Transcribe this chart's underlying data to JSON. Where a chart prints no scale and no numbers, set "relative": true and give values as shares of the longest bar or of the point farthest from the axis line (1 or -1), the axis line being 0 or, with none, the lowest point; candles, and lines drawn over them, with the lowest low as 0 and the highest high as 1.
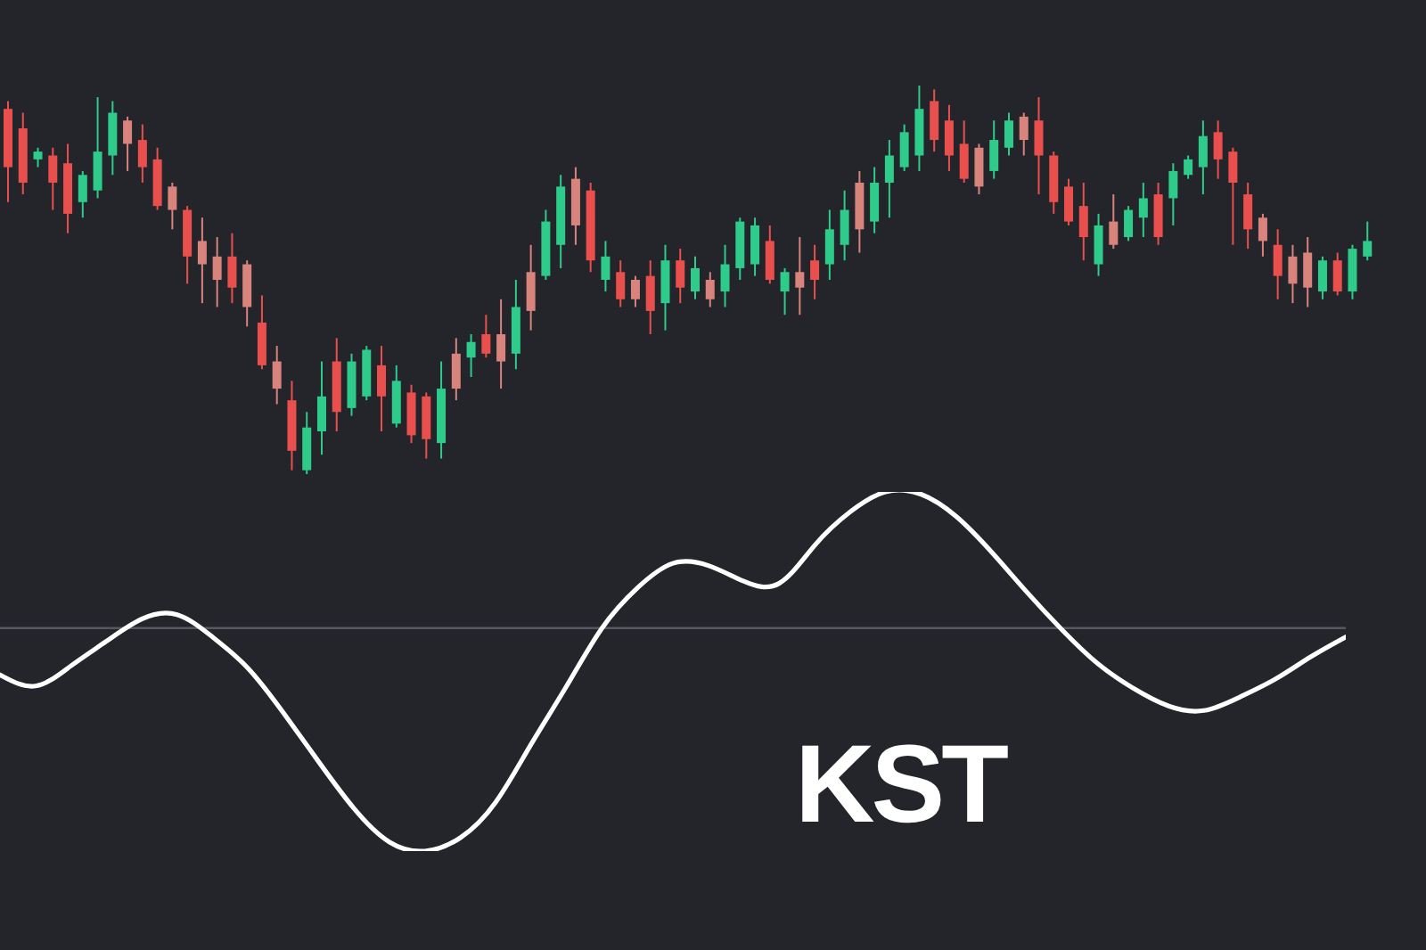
{
  "chart_data": [
    {
      "type": "candlestick",
      "relative": true,
      "categories": [
        null,
        null,
        null,
        null,
        null,
        null,
        null,
        null,
        null,
        null,
        null,
        null,
        null,
        null,
        null,
        null,
        null,
        null,
        null,
        null,
        null,
        null,
        null,
        null,
        null,
        null,
        null,
        null,
        null,
        null,
        null,
        null,
        null,
        null,
        null,
        null,
        null,
        null,
        null,
        null,
        null,
        null,
        null,
        null,
        null,
        null,
        null,
        null,
        null,
        null,
        null,
        null,
        null,
        null,
        null,
        null,
        null,
        null,
        null,
        null,
        null,
        null,
        null,
        null,
        null,
        null,
        null,
        null,
        null,
        null,
        null,
        null,
        null,
        null,
        null,
        null,
        null,
        null,
        null,
        null,
        null,
        null,
        null,
        null,
        null,
        null,
        null,
        null,
        null,
        null,
        null,
        null
      ],
      "ohlc": [
        [
          0.94,
          0.96,
          0.7,
          0.79
        ],
        [
          0.89,
          0.93,
          0.72,
          0.75
        ],
        [
          0.81,
          0.84,
          0.79,
          0.83
        ],
        [
          0.82,
          0.84,
          0.68,
          0.75
        ],
        [
          0.8,
          0.85,
          0.62,
          0.67
        ],
        [
          0.7,
          0.78,
          0.66,
          0.77
        ],
        [
          0.73,
          0.97,
          0.71,
          0.83
        ],
        [
          0.82,
          0.96,
          0.77,
          0.93
        ],
        [
          0.91,
          0.92,
          0.78,
          0.85
        ],
        [
          0.86,
          0.9,
          0.75,
          0.79
        ],
        [
          0.81,
          0.84,
          0.68,
          0.69
        ],
        [
          0.74,
          0.75,
          0.63,
          0.68
        ],
        [
          0.68,
          0.69,
          0.49,
          0.56
        ],
        [
          0.6,
          0.66,
          0.44,
          0.54
        ],
        [
          0.56,
          0.61,
          0.43,
          0.5
        ],
        [
          0.56,
          0.62,
          0.44,
          0.48
        ],
        [
          0.54,
          0.55,
          0.38,
          0.43
        ],
        [
          0.39,
          0.46,
          0.27,
          0.28
        ],
        [
          0.29,
          0.33,
          0.18,
          0.22
        ],
        [
          0.19,
          0.24,
          0.01,
          0.06
        ],
        [
          0.01,
          0.16,
          0,
          0.12
        ],
        [
          0.11,
          0.29,
          0.05,
          0.2
        ],
        [
          0.29,
          0.35,
          0.11,
          0.16
        ],
        [
          0.17,
          0.31,
          0.15,
          0.29
        ],
        [
          0.2,
          0.33,
          0.19,
          0.32
        ],
        [
          0.28,
          0.33,
          0.11,
          0.2
        ],
        [
          0.13,
          0.28,
          0.12,
          0.24
        ],
        [
          0.21,
          0.23,
          0.08,
          0.1
        ],
        [
          0.2,
          0.21,
          0.04,
          0.09
        ],
        [
          0.08,
          0.29,
          0.04,
          0.22
        ],
        [
          0.31,
          0.35,
          0.19,
          0.22
        ],
        [
          0.3,
          0.36,
          0.25,
          0.34
        ],
        [
          0.36,
          0.41,
          0.3,
          0.31
        ],
        [
          0.36,
          0.45,
          0.22,
          0.29
        ],
        [
          0.31,
          0.5,
          0.27,
          0.43
        ],
        [
          0.52,
          0.59,
          0.37,
          0.42
        ],
        [
          0.51,
          0.68,
          0.5,
          0.65
        ],
        [
          0.59,
          0.77,
          0.53,
          0.74
        ],
        [
          0.76,
          0.79,
          0.59,
          0.64
        ],
        [
          0.73,
          0.75,
          0.52,
          0.55
        ],
        [
          0.5,
          0.6,
          0.47,
          0.56
        ],
        [
          0.52,
          0.55,
          0.43,
          0.45
        ],
        [
          0.5,
          0.51,
          0.43,
          0.45
        ],
        [
          0.51,
          0.55,
          0.36,
          0.42
        ],
        [
          0.44,
          0.59,
          0.37,
          0.55
        ],
        [
          0.55,
          0.58,
          0.44,
          0.48
        ],
        [
          0.47,
          0.56,
          0.45,
          0.53
        ],
        [
          0.5,
          0.52,
          0.43,
          0.45
        ],
        [
          0.47,
          0.59,
          0.43,
          0.54
        ],
        [
          0.53,
          0.66,
          0.5,
          0.65
        ],
        [
          0.54,
          0.66,
          0.51,
          0.64
        ],
        [
          0.6,
          0.64,
          0.49,
          0.5
        ],
        [
          0.47,
          0.53,
          0.41,
          0.52
        ],
        [
          0.52,
          0.61,
          0.41,
          0.48
        ],
        [
          0.55,
          0.59,
          0.45,
          0.5
        ],
        [
          0.54,
          0.68,
          0.5,
          0.63
        ],
        [
          0.59,
          0.73,
          0.55,
          0.68
        ],
        [
          0.75,
          0.78,
          0.57,
          0.63
        ],
        [
          0.65,
          0.79,
          0.62,
          0.75
        ],
        [
          0.75,
          0.86,
          0.66,
          0.82
        ],
        [
          0.79,
          0.9,
          0.78,
          0.88
        ],
        [
          0.82,
          1,
          0.78,
          0.94
        ],
        [
          0.96,
          0.99,
          0.83,
          0.86
        ],
        [
          0.91,
          0.95,
          0.78,
          0.82
        ],
        [
          0.85,
          0.91,
          0.75,
          0.76
        ],
        [
          0.84,
          0.85,
          0.72,
          0.74
        ],
        [
          0.78,
          0.91,
          0.76,
          0.86
        ],
        [
          0.84,
          0.93,
          0.82,
          0.91
        ],
        [
          0.92,
          0.93,
          0.82,
          0.86
        ],
        [
          0.91,
          0.97,
          0.72,
          0.82
        ],
        [
          0.82,
          0.83,
          0.67,
          0.7
        ],
        [
          0.74,
          0.76,
          0.64,
          0.65
        ],
        [
          0.69,
          0.75,
          0.55,
          0.61
        ],
        [
          0.54,
          0.67,
          0.51,
          0.64
        ],
        [
          0.65,
          0.72,
          0.58,
          0.59
        ],
        [
          0.61,
          0.69,
          0.6,
          0.68
        ],
        [
          0.66,
          0.75,
          0.61,
          0.71
        ],
        [
          0.72,
          0.75,
          0.59,
          0.61
        ],
        [
          0.71,
          0.8,
          0.64,
          0.78
        ],
        [
          0.77,
          0.82,
          0.76,
          0.81
        ],
        [
          0.79,
          0.91,
          0.72,
          0.87
        ],
        [
          0.88,
          0.91,
          0.76,
          0.81
        ],
        [
          0.83,
          0.84,
          0.59,
          0.75
        ],
        [
          0.72,
          0.75,
          0.58,
          0.63
        ],
        [
          0.66,
          0.67,
          0.56,
          0.6
        ],
        [
          0.59,
          0.63,
          0.45,
          0.51
        ],
        [
          0.56,
          0.59,
          0.44,
          0.49
        ],
        [
          0.57,
          0.61,
          0.43,
          0.48
        ],
        [
          0.47,
          0.56,
          0.45,
          0.55
        ],
        [
          0.55,
          0.57,
          0.46,
          0.47
        ],
        [
          0.47,
          0.59,
          0.45,
          0.58
        ],
        [
          0.56,
          0.65,
          0.55,
          0.6
        ]
      ],
      "colors": [
        "#e9504d",
        "#e9504d",
        "#2fcb8b",
        "#e9504d",
        "#e9504d",
        "#2fcb8b",
        "#2fcb8b",
        "#2fcb8b",
        "#d9837d",
        "#e9504d",
        "#e9504d",
        "#d9837d",
        "#e9504d",
        "#d9837d",
        "#d9837d",
        "#e9504d",
        "#d9837d",
        "#e9504d",
        "#d9837d",
        "#e9504d",
        "#2fcb8b",
        "#2fcb8b",
        "#e9504d",
        "#2fcb8b",
        "#2fcb8b",
        "#e9504d",
        "#2fcb8b",
        "#e9504d",
        "#e9504d",
        "#2fcb8b",
        "#d9837d",
        "#2fcb8b",
        "#e9504d",
        "#d9837d",
        "#2fcb8b",
        "#d9837d",
        "#2fcb8b",
        "#2fcb8b",
        "#d9837d",
        "#e9504d",
        "#2fcb8b",
        "#e9504d",
        "#d9837d",
        "#e9504d",
        "#2fcb8b",
        "#e9504d",
        "#2fcb8b",
        "#d9837d",
        "#2fcb8b",
        "#2fcb8b",
        "#2fcb8b",
        "#e9504d",
        "#2fcb8b",
        "#d9837d",
        "#e9504d",
        "#2fcb8b",
        "#2fcb8b",
        "#d9837d",
        "#2fcb8b",
        "#2fcb8b",
        "#2fcb8b",
        "#2fcb8b",
        "#e9504d",
        "#e9504d",
        "#e9504d",
        "#d9837d",
        "#2fcb8b",
        "#2fcb8b",
        "#d9837d",
        "#e9504d",
        "#e9504d",
        "#e9504d",
        "#e9504d",
        "#2fcb8b",
        "#d9837d",
        "#2fcb8b",
        "#2fcb8b",
        "#e9504d",
        "#2fcb8b",
        "#2fcb8b",
        "#2fcb8b",
        "#e9504d",
        "#e9504d",
        "#e9504d",
        "#d9837d",
        "#e9504d",
        "#d9837d",
        "#d9837d",
        "#2fcb8b",
        "#e9504d",
        "#2fcb8b",
        "#2fcb8b"
      ]
    },
    {
      "type": "line",
      "relative": true,
      "categories": [
        null,
        null,
        null,
        null,
        null,
        null,
        null,
        null,
        null,
        null,
        null,
        null,
        null,
        null,
        null,
        null,
        null,
        null,
        null,
        null,
        null,
        null,
        null,
        null,
        null,
        null,
        null,
        null,
        null,
        null,
        null,
        null,
        null,
        null,
        null,
        null,
        null,
        null,
        null
      ],
      "series": [
        {
          "color": "#ffffff",
          "values": [
            -0.21,
            -0.26,
            -0.17,
            -0.06,
            0.04,
            0.06,
            -0.04,
            -0.18,
            -0.38,
            -0.6,
            -0.81,
            -0.96,
            -1,
            -0.94,
            -0.78,
            -0.52,
            -0.26,
            0.0,
            0.18,
            0.29,
            0.28,
            0.21,
            0.2,
            0.37,
            0.52,
            0.61,
            0.6,
            0.5,
            0.34,
            0.16,
            -0.01,
            -0.16,
            -0.27,
            -0.35,
            -0.37,
            -0.31,
            -0.23,
            -0.13,
            -0.04
          ]
        }
      ],
      "ref_lines": [
        {
          "axis": "y",
          "value": 0,
          "color": "#55585e"
        }
      ],
      "annotations": [
        "KST"
      ]
    }
  ]
}
